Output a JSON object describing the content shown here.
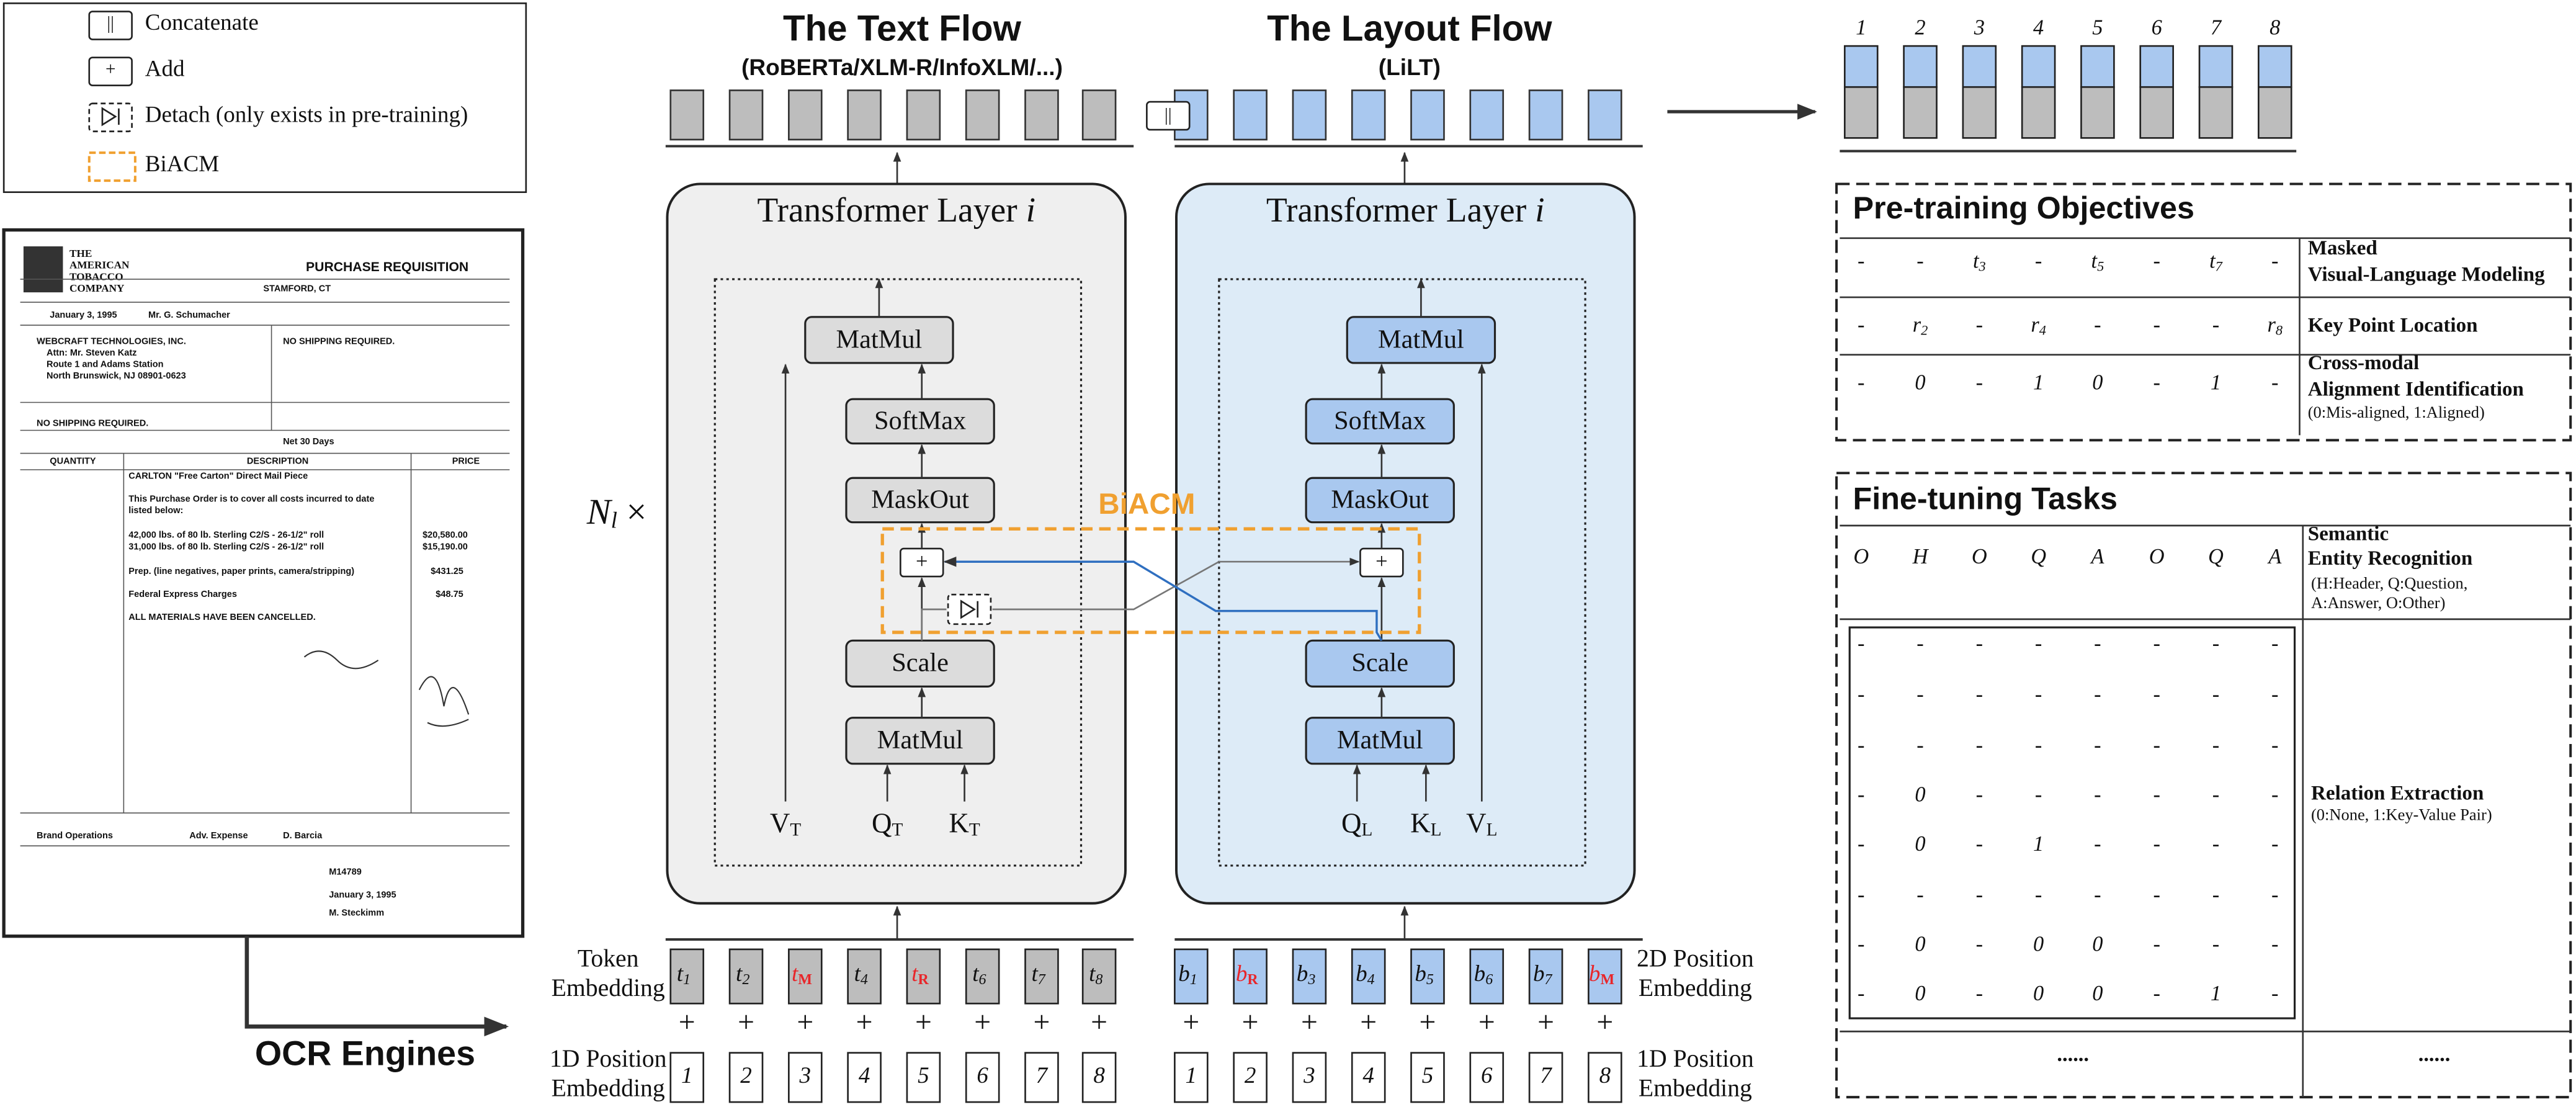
{
  "legend": [
    {
      "symbol": "||",
      "label": "Concatenate"
    },
    {
      "symbol": "+",
      "label": "Add"
    },
    {
      "label": "Detach (only exists in pre-training)"
    },
    {
      "label": "BiACM"
    }
  ],
  "document": {
    "header": [
      "THE",
      "AMERICAN",
      "TOBACCO",
      "COMPANY"
    ],
    "title": "PURCHASE REQUISITION",
    "lines": [
      "STAMFORD, CT",
      "January 3, 1995",
      "Mr. G. Schumacher",
      "WEBCRAFT TECHNOLOGIES, INC.",
      "Attn: Mr. Steven Katz",
      "Route 1 and Adams Station",
      "North Brunswick, NJ 08901-0623",
      "NO SHIPPING REQUIRED.",
      "NO SHIPPING REQUIRED.",
      "Net 30 Days",
      "QUANTITY",
      "DESCRIPTION",
      "PRICE",
      "CARLTON \"Free Carton\" Direct Mail Piece",
      "This Purchase Order is to cover all costs incurred to date",
      "listed below:",
      "42,000 lbs. of 80 lb. Sterling C2/S - 26-1/2\" roll",
      "$20,580.00",
      "31,000 lbs. of 80 lb. Sterling C2/S - 26-1/2\" roll",
      "$15,190.00",
      "Prep. (line negatives, paper prints, camera/stripping)",
      "$431.25",
      "Federal Express Charges",
      "$48.75",
      "ALL MATERIALS HAVE BEEN CANCELLED.",
      "Brand Operations",
      "Adv. Expense",
      "D. Barcia",
      "M14789",
      "January 3, 1995",
      "M. Steckimm"
    ]
  },
  "ocr_label": "OCR Engines",
  "repeat_label": {
    "base": "N",
    "sub": "l",
    "suffix": " ×"
  },
  "biacm_label": "BiACM",
  "concat_symbol": "||",
  "add_symbol": "+",
  "text_flow": {
    "title": "The Text Flow",
    "subtitle": "(RoBERTa/XLM-R/InfoXLM/...)",
    "layer": {
      "name": "Transformer Layer ",
      "index": "i"
    },
    "blocks": [
      "MatMul",
      "SoftMax",
      "MaskOut",
      "Scale",
      "MatMul"
    ],
    "inputs": [
      {
        "base": "V",
        "sub": "T"
      },
      {
        "base": "Q",
        "sub": "T"
      },
      {
        "base": "K",
        "sub": "T"
      }
    ],
    "embedding_label": [
      "Token",
      "Embedding"
    ],
    "tokens": [
      {
        "base": "t",
        "sub": "1"
      },
      {
        "base": "t",
        "sub": "2"
      },
      {
        "base": "t",
        "sub": "M",
        "color": "#e8262a"
      },
      {
        "base": "t",
        "sub": "4"
      },
      {
        "base": "t",
        "sub": "R",
        "color": "#e8262a"
      },
      {
        "base": "t",
        "sub": "6"
      },
      {
        "base": "t",
        "sub": "7"
      },
      {
        "base": "t",
        "sub": "8"
      }
    ],
    "position_label": [
      "1D Position",
      "Embedding"
    ],
    "positions": [
      "1",
      "2",
      "3",
      "4",
      "5",
      "6",
      "7",
      "8"
    ]
  },
  "layout_flow": {
    "title": "The Layout Flow",
    "subtitle": "(LiLT)",
    "layer": {
      "name": "Transformer Layer ",
      "index": "i"
    },
    "blocks": [
      "MatMul",
      "SoftMax",
      "MaskOut",
      "Scale",
      "MatMul"
    ],
    "inputs": [
      {
        "base": "Q",
        "sub": "L"
      },
      {
        "base": "K",
        "sub": "L"
      },
      {
        "base": "V",
        "sub": "L"
      }
    ],
    "embedding_label": [
      "2D Position",
      "Embedding"
    ],
    "tokens": [
      {
        "base": "b",
        "sub": "1"
      },
      {
        "base": "b",
        "sub": "R",
        "color": "#e8262a"
      },
      {
        "base": "b",
        "sub": "3"
      },
      {
        "base": "b",
        "sub": "4"
      },
      {
        "base": "b",
        "sub": "5"
      },
      {
        "base": "b",
        "sub": "6"
      },
      {
        "base": "b",
        "sub": "7"
      },
      {
        "base": "b",
        "sub": "M",
        "color": "#e8262a"
      }
    ],
    "position_label": [
      "1D Position",
      "Embedding"
    ],
    "positions": [
      "1",
      "2",
      "3",
      "4",
      "5",
      "6",
      "7",
      "8"
    ]
  },
  "output": {
    "positions": [
      "1",
      "2",
      "3",
      "4",
      "5",
      "6",
      "7",
      "8"
    ]
  },
  "pretraining": {
    "title": "Pre-training Objectives",
    "rows": [
      {
        "cells": [
          "-",
          "-",
          {
            "base": "t",
            "sub": "3"
          },
          "-",
          {
            "base": "t",
            "sub": "5"
          },
          "-",
          {
            "base": "t",
            "sub": "7"
          },
          "-"
        ],
        "label": [
          "Masked",
          "Visual-Language Modeling"
        ]
      },
      {
        "cells": [
          "-",
          {
            "base": "r",
            "sub": "2"
          },
          "-",
          {
            "base": "r",
            "sub": "4"
          },
          "-",
          "-",
          "-",
          {
            "base": "r",
            "sub": "8"
          }
        ],
        "label": [
          "Key Point Location"
        ]
      },
      {
        "cells": [
          "-",
          "0",
          "-",
          "1",
          "0",
          "-",
          "1",
          "-"
        ],
        "label": [
          "Cross-modal",
          "Alignment Identification"
        ],
        "note": "(0:Mis-aligned, 1:Aligned)"
      }
    ]
  },
  "finetuning": {
    "title": "Fine-tuning Tasks",
    "ser": {
      "cells": [
        "O",
        "H",
        "O",
        "Q",
        "A",
        "O",
        "Q",
        "A"
      ],
      "label": [
        "Semantic",
        "Entity Recognition"
      ],
      "note": [
        "(H:Header, Q:Question,",
        "A:Answer, O:Other)"
      ]
    },
    "re": {
      "matrix": [
        [
          "-",
          "-",
          "-",
          "-",
          "-",
          "-",
          "-",
          "-"
        ],
        [
          "-",
          "-",
          "-",
          "-",
          "-",
          "-",
          "-",
          "-"
        ],
        [
          "-",
          "-",
          "-",
          "-",
          "-",
          "-",
          "-",
          "-"
        ],
        [
          "-",
          "0",
          "-",
          "-",
          "-",
          "-",
          "-",
          "-"
        ],
        [
          "-",
          "0",
          "-",
          "1",
          "-",
          "-",
          "-",
          "-"
        ],
        [
          "-",
          "-",
          "-",
          "-",
          "-",
          "-",
          "-",
          "-"
        ],
        [
          "-",
          "0",
          "-",
          "0",
          "0",
          "-",
          "-",
          "-"
        ],
        [
          "-",
          "0",
          "-",
          "0",
          "0",
          "-",
          "1",
          "-"
        ]
      ],
      "label": "Relation Extraction",
      "note": "(0:None, 1:Key-Value Pair)"
    },
    "more": [
      "......",
      "......"
    ]
  }
}
